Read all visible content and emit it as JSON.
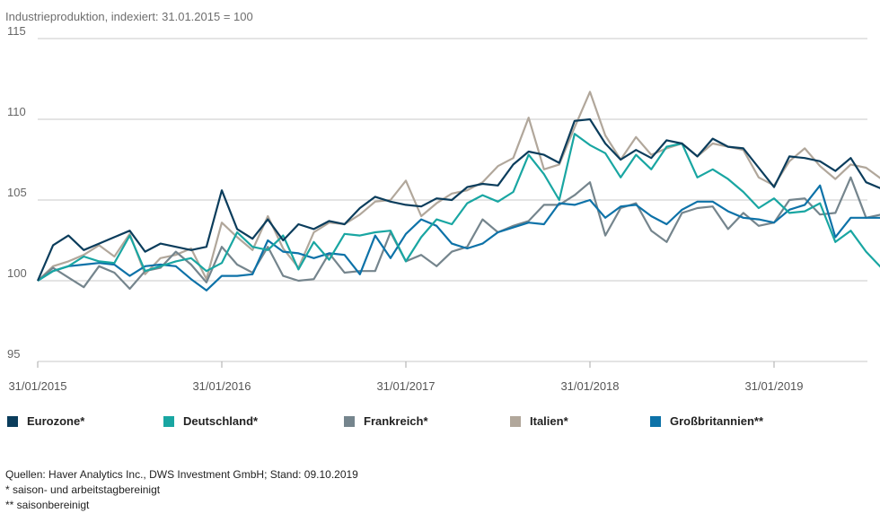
{
  "chart_data": {
    "type": "line",
    "title": "Industrieproduktion, indexiert: 31.01.2015 = 100",
    "xlabel": "",
    "ylabel": "",
    "ylim": [
      95,
      115
    ],
    "yticks": [
      95,
      100,
      105,
      110,
      115
    ],
    "xticks": [
      "31/01/2015",
      "31/01/2016",
      "31/01/2017",
      "31/01/2018",
      "31/01/2019"
    ],
    "x_start": "31/01/2015",
    "grid": "horizontal",
    "legend_position": "bottom",
    "series": [
      {
        "name": "Eurozone*",
        "color": "#0b3d5c",
        "values": [
          100.0,
          102.2,
          102.8,
          101.9,
          102.3,
          102.7,
          103.1,
          101.8,
          102.3,
          102.1,
          101.9,
          102.1,
          105.6,
          103.2,
          102.6,
          103.8,
          102.5,
          103.5,
          103.2,
          103.7,
          103.5,
          104.5,
          105.2,
          104.9,
          104.7,
          104.6,
          105.1,
          105.0,
          105.8,
          106.0,
          105.9,
          107.2,
          108.0,
          107.8,
          107.3,
          109.9,
          110.0,
          108.5,
          107.5,
          108.1,
          107.6,
          108.7,
          108.5,
          107.7,
          108.8,
          108.3,
          108.2,
          107.0,
          105.8,
          107.7,
          107.6,
          107.4,
          106.8,
          107.6,
          106.1,
          105.7
        ]
      },
      {
        "name": "Deutschland*",
        "color": "#19a6a2",
        "values": [
          100.0,
          100.6,
          100.9,
          101.5,
          101.2,
          101.1,
          102.8,
          100.6,
          100.9,
          101.2,
          101.4,
          100.6,
          101.1,
          103.0,
          102.1,
          101.9,
          102.8,
          100.7,
          102.4,
          101.3,
          102.9,
          102.8,
          103.0,
          103.1,
          101.2,
          102.7,
          103.8,
          103.5,
          104.8,
          105.3,
          104.9,
          105.5,
          107.8,
          106.6,
          105.0,
          109.1,
          108.4,
          107.9,
          106.4,
          107.8,
          106.9,
          108.3,
          108.5,
          106.4,
          106.9,
          106.3,
          105.5,
          104.5,
          105.1,
          104.2,
          104.3,
          104.8,
          102.4,
          103.1,
          101.8,
          100.8
        ]
      },
      {
        "name": "Frankreich*",
        "color": "#75858d",
        "values": [
          100.0,
          100.8,
          100.2,
          99.6,
          100.9,
          100.5,
          99.5,
          100.6,
          100.8,
          101.8,
          101.0,
          99.9,
          102.1,
          101.0,
          100.5,
          102.1,
          100.3,
          100.0,
          100.1,
          101.7,
          100.5,
          100.6,
          100.6,
          103.0,
          101.2,
          101.6,
          100.9,
          101.8,
          102.1,
          103.8,
          103.0,
          103.4,
          103.7,
          104.7,
          104.7,
          105.3,
          106.1,
          102.8,
          104.5,
          104.8,
          103.1,
          102.4,
          104.2,
          104.5,
          104.6,
          103.2,
          104.2,
          103.4,
          103.6,
          105.0,
          105.1,
          104.1,
          104.2,
          106.4,
          103.9,
          104.1
        ]
      },
      {
        "name": "Italien*",
        "color": "#b1a79b",
        "values": [
          100.0,
          100.9,
          101.2,
          101.6,
          102.2,
          101.5,
          102.9,
          100.4,
          101.4,
          101.6,
          102.0,
          100.1,
          103.6,
          102.7,
          101.9,
          104.0,
          102.0,
          100.8,
          103.0,
          103.6,
          103.5,
          104.1,
          104.9,
          105.0,
          106.2,
          104.0,
          104.8,
          105.4,
          105.6,
          106.1,
          107.1,
          107.6,
          110.1,
          106.9,
          107.2,
          109.5,
          111.7,
          109.0,
          107.5,
          108.9,
          107.8,
          108.2,
          108.5,
          107.7,
          108.5,
          108.3,
          108.1,
          106.4,
          105.9,
          107.4,
          108.2,
          107.1,
          106.3,
          107.2,
          107.0,
          106.3
        ]
      },
      {
        "name": "Großbritannien**",
        "color": "#0d72a8",
        "values": [
          100.0,
          100.6,
          100.9,
          101.0,
          101.1,
          101.0,
          100.3,
          100.9,
          101.0,
          100.9,
          100.1,
          99.4,
          100.3,
          100.3,
          100.4,
          102.5,
          101.8,
          101.7,
          101.4,
          101.7,
          101.6,
          100.4,
          102.8,
          101.4,
          102.9,
          103.8,
          103.4,
          102.3,
          102.0,
          102.3,
          103.0,
          103.3,
          103.6,
          103.5,
          104.8,
          104.7,
          105.0,
          103.9,
          104.6,
          104.7,
          104.0,
          103.5,
          104.4,
          104.9,
          104.9,
          104.3,
          103.9,
          103.8,
          103.6,
          104.4,
          104.7,
          105.9,
          102.7,
          103.9,
          103.9,
          103.9
        ]
      }
    ]
  },
  "legend": [
    {
      "label": "Eurozone*",
      "color": "#0b3d5c"
    },
    {
      "label": "Deutschland*",
      "color": "#19a6a2"
    },
    {
      "label": "Frankreich*",
      "color": "#75858d"
    },
    {
      "label": "Italien*",
      "color": "#b1a79b"
    },
    {
      "label": "Großbritannien**",
      "color": "#0d72a8"
    }
  ],
  "notes": {
    "source": "Quellen: Haver Analytics Inc., DWS Investment GmbH; Stand: 09.10.2019",
    "note1": "* saison- und arbeitstagbereinigt",
    "note2": "** saisonbereinigt"
  }
}
